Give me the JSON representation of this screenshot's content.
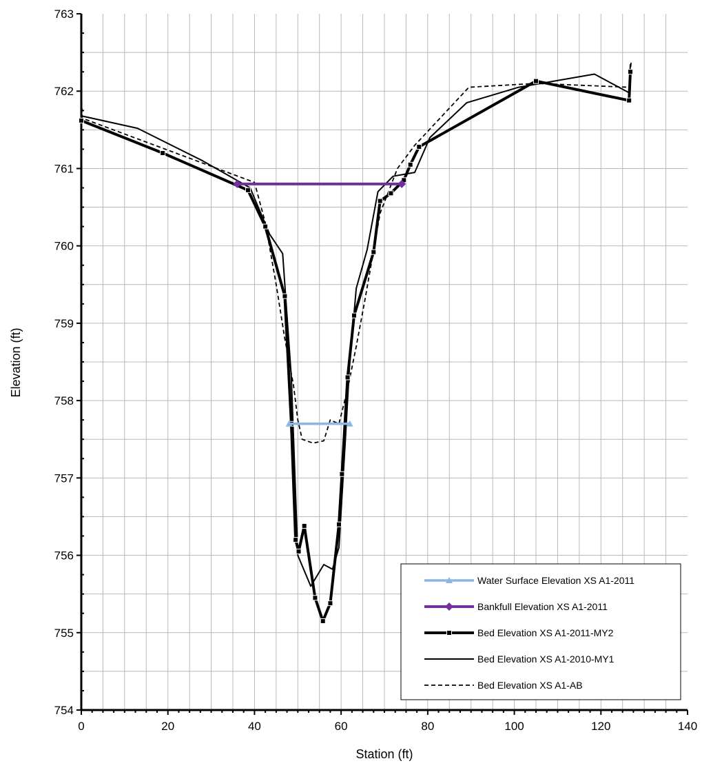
{
  "chart_data": {
    "type": "line",
    "title": "",
    "xlabel": "Station (ft)",
    "ylabel": "Elevation (ft)",
    "xlim": [
      0,
      140
    ],
    "ylim": [
      754,
      763
    ],
    "xticks": [
      0,
      20,
      40,
      60,
      80,
      100,
      120,
      140
    ],
    "yticks": [
      754,
      755,
      756,
      757,
      758,
      759,
      760,
      761,
      762,
      763
    ],
    "x_tick_labels": [
      "0",
      "20",
      "40",
      "60",
      "80",
      "100",
      "120",
      "140"
    ],
    "y_tick_labels": [
      "754",
      "755",
      "756",
      "757",
      "758",
      "759",
      "760",
      "761",
      "762",
      "763"
    ],
    "grid": true,
    "legend_position": "bottom-right",
    "series": [
      {
        "name": "Water Surface Elevation XS A1-2011",
        "color": "#8EB4E3",
        "style": "solid",
        "marker": "triangle",
        "points": [
          [
            48,
            757.7
          ],
          [
            62,
            757.7
          ]
        ]
      },
      {
        "name": "Bankfull Elevation XS A1-2011",
        "color": "#7030A0",
        "style": "solid",
        "marker": "diamond",
        "points": [
          [
            36,
            760.8
          ],
          [
            74,
            760.8
          ]
        ]
      },
      {
        "name": "Bed Elevation XS A1-2011-MY2",
        "color": "#000000",
        "style": "thick",
        "marker": "square",
        "points": [
          [
            0,
            761.62
          ],
          [
            18.8,
            761.2
          ],
          [
            38.5,
            760.72
          ],
          [
            42.5,
            760.25
          ],
          [
            47,
            759.35
          ],
          [
            48.5,
            757.7
          ],
          [
            49.5,
            756.2
          ],
          [
            50.2,
            756.05
          ],
          [
            51.5,
            756.38
          ],
          [
            54,
            755.45
          ],
          [
            55.8,
            755.15
          ],
          [
            57.5,
            755.38
          ],
          [
            59.5,
            756.4
          ],
          [
            60.2,
            757.05
          ],
          [
            61.5,
            758.3
          ],
          [
            63,
            759.1
          ],
          [
            67.5,
            759.92
          ],
          [
            69,
            760.58
          ],
          [
            71.5,
            760.68
          ],
          [
            74.5,
            760.85
          ],
          [
            76,
            761.05
          ],
          [
            78,
            761.28
          ],
          [
            105,
            762.13
          ],
          [
            126.5,
            761.88
          ],
          [
            126.8,
            762.25
          ]
        ]
      },
      {
        "name": "Bed Elevation XS A1-2010-MY1",
        "color": "#000000",
        "style": "thin",
        "marker": "none",
        "points": [
          [
            0,
            761.68
          ],
          [
            13,
            761.52
          ],
          [
            28,
            761.1
          ],
          [
            39,
            760.75
          ],
          [
            43.5,
            760.15
          ],
          [
            46.5,
            759.9
          ],
          [
            48.5,
            758.3
          ],
          [
            50,
            756.0
          ],
          [
            53,
            755.6
          ],
          [
            56,
            755.88
          ],
          [
            58,
            755.82
          ],
          [
            59.5,
            756.1
          ],
          [
            61,
            757.5
          ],
          [
            62,
            758.5
          ],
          [
            63.5,
            759.45
          ],
          [
            66,
            759.95
          ],
          [
            68.5,
            760.7
          ],
          [
            72,
            760.9
          ],
          [
            77,
            760.95
          ],
          [
            80.5,
            761.4
          ],
          [
            89,
            761.85
          ],
          [
            101,
            762.05
          ],
          [
            118.5,
            762.22
          ],
          [
            126.5,
            761.98
          ],
          [
            126.8,
            762.35
          ]
        ]
      },
      {
        "name": "Bed Elevation  XS A1-AB",
        "color": "#000000",
        "style": "dashed",
        "marker": "none",
        "points": [
          [
            0,
            762.05
          ],
          [
            0.2,
            761.65
          ],
          [
            40,
            760.82
          ],
          [
            42.5,
            760.3
          ],
          [
            45,
            759.5
          ],
          [
            47,
            758.8
          ],
          [
            49,
            758.2
          ],
          [
            50,
            757.75
          ],
          [
            51,
            757.5
          ],
          [
            53.5,
            757.45
          ],
          [
            56,
            757.48
          ],
          [
            57.5,
            757.75
          ],
          [
            59.5,
            757.7
          ],
          [
            61.5,
            758.15
          ],
          [
            63.5,
            758.7
          ],
          [
            65.5,
            759.3
          ],
          [
            69,
            760.42
          ],
          [
            73,
            761.0
          ],
          [
            77,
            761.3
          ],
          [
            89.5,
            762.05
          ],
          [
            105,
            762.1
          ],
          [
            126.5,
            762.05
          ],
          [
            127,
            762.4
          ]
        ]
      }
    ]
  }
}
